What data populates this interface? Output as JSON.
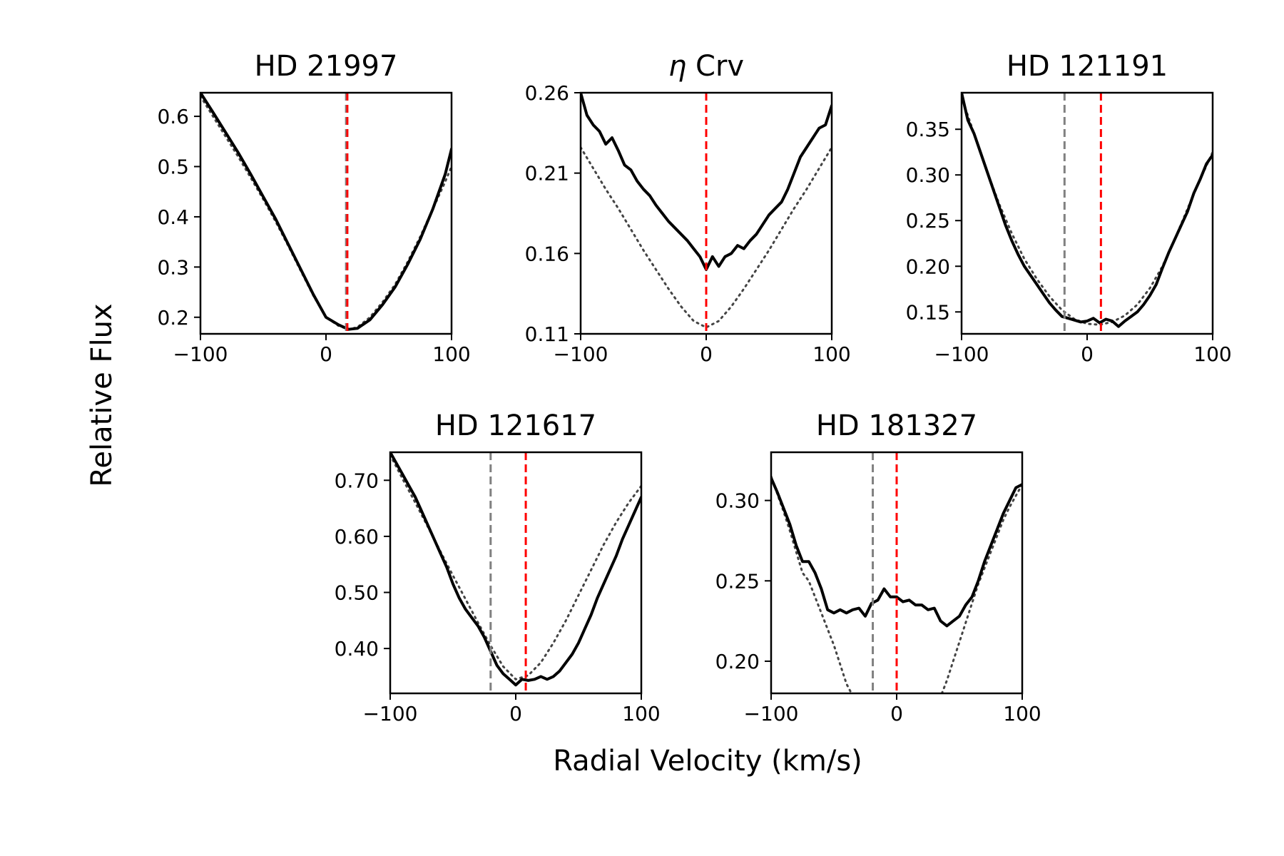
{
  "figure": {
    "xlabel": "Radial Velocity (km/s)",
    "ylabel": "Relative Flux"
  },
  "colors": {
    "observed": "#000000",
    "model": "#444444",
    "systemic_velocity": "#808080",
    "planet_velocity": "#ff0000"
  },
  "chart_data": [
    {
      "type": "line",
      "title": "HD 21997",
      "xlabel": "Radial Velocity (km/s)",
      "ylabel": "Relative Flux",
      "xlim": [
        -100,
        100
      ],
      "ylim": [
        0.167,
        0.647
      ],
      "xticks": [
        -100,
        0,
        100
      ],
      "xtick_labels": [
        "−100",
        "0",
        "100"
      ],
      "yticks": [
        0.2,
        0.3,
        0.4,
        0.5,
        0.6
      ],
      "ytick_labels": [
        "0.2",
        "0.3",
        "0.4",
        "0.5",
        "0.6"
      ],
      "vlines": [
        {
          "x": 16,
          "color": "#808080",
          "label": "systemic"
        },
        {
          "x": 17,
          "color": "#ff0000",
          "label": "planet"
        }
      ],
      "series": [
        {
          "name": "observed",
          "style": "solid",
          "x": [
            -100,
            -90,
            -80,
            -70,
            -60,
            -50,
            -40,
            -30,
            -20,
            -10,
            0,
            10,
            18,
            25,
            35,
            45,
            55,
            65,
            75,
            85,
            95,
            100
          ],
          "y": [
            0.647,
            0.608,
            0.568,
            0.528,
            0.485,
            0.44,
            0.395,
            0.345,
            0.295,
            0.245,
            0.2,
            0.185,
            0.176,
            0.178,
            0.195,
            0.225,
            0.26,
            0.305,
            0.355,
            0.415,
            0.485,
            0.535
          ]
        },
        {
          "name": "model",
          "style": "dotted",
          "x": [
            -100,
            -90,
            -80,
            -70,
            -60,
            -50,
            -40,
            -30,
            -20,
            -10,
            0,
            10,
            18,
            25,
            35,
            45,
            55,
            65,
            75,
            85,
            95,
            100
          ],
          "y": [
            0.64,
            0.6,
            0.56,
            0.52,
            0.478,
            0.435,
            0.39,
            0.342,
            0.292,
            0.243,
            0.2,
            0.183,
            0.176,
            0.18,
            0.2,
            0.23,
            0.265,
            0.31,
            0.36,
            0.415,
            0.47,
            0.5
          ]
        }
      ]
    },
    {
      "type": "line",
      "title": "η Crv",
      "title_italic_part": "η",
      "title_rest": " Crv",
      "xlabel": "Radial Velocity (km/s)",
      "ylabel": "Relative Flux",
      "xlim": [
        -100,
        100
      ],
      "ylim": [
        0.11,
        0.26
      ],
      "xticks": [
        -100,
        0,
        100
      ],
      "xtick_labels": [
        "−100",
        "0",
        "100"
      ],
      "yticks": [
        0.11,
        0.16,
        0.21,
        0.26
      ],
      "ytick_labels": [
        "0.11",
        "0.16",
        "0.21",
        "0.26"
      ],
      "vlines": [
        {
          "x": 0,
          "color": "#808080",
          "label": "systemic"
        },
        {
          "x": 0,
          "color": "#ff0000",
          "label": "planet"
        }
      ],
      "series": [
        {
          "name": "observed",
          "style": "solid",
          "x": [
            -100,
            -95,
            -90,
            -85,
            -80,
            -75,
            -70,
            -65,
            -60,
            -55,
            -50,
            -45,
            -40,
            -35,
            -30,
            -25,
            -20,
            -15,
            -10,
            -5,
            0,
            5,
            10,
            15,
            20,
            25,
            30,
            35,
            40,
            45,
            50,
            55,
            60,
            65,
            70,
            75,
            80,
            85,
            90,
            95,
            100
          ],
          "y": [
            0.26,
            0.246,
            0.24,
            0.236,
            0.228,
            0.232,
            0.224,
            0.215,
            0.212,
            0.205,
            0.2,
            0.196,
            0.19,
            0.185,
            0.18,
            0.176,
            0.172,
            0.168,
            0.163,
            0.158,
            0.15,
            0.158,
            0.152,
            0.158,
            0.16,
            0.165,
            0.163,
            0.168,
            0.172,
            0.178,
            0.184,
            0.188,
            0.192,
            0.2,
            0.21,
            0.22,
            0.226,
            0.232,
            0.238,
            0.24,
            0.252
          ]
        },
        {
          "name": "model",
          "style": "dotted",
          "x": [
            -100,
            -90,
            -80,
            -70,
            -60,
            -50,
            -40,
            -30,
            -20,
            -10,
            0,
            10,
            20,
            30,
            40,
            50,
            60,
            70,
            80,
            90,
            100
          ],
          "y": [
            0.226,
            0.213,
            0.2,
            0.188,
            0.175,
            0.162,
            0.15,
            0.138,
            0.127,
            0.118,
            0.114,
            0.118,
            0.127,
            0.138,
            0.15,
            0.162,
            0.175,
            0.188,
            0.2,
            0.213,
            0.226
          ]
        }
      ]
    },
    {
      "type": "line",
      "title": "HD 121191",
      "xlabel": "Radial Velocity (km/s)",
      "ylabel": "Relative Flux",
      "xlim": [
        -100,
        100
      ],
      "ylim": [
        0.126,
        0.39
      ],
      "xticks": [
        -100,
        0,
        100
      ],
      "xtick_labels": [
        "−100",
        "0",
        "100"
      ],
      "yticks": [
        0.15,
        0.2,
        0.25,
        0.3,
        0.35
      ],
      "ytick_labels": [
        "0.15",
        "0.20",
        "0.25",
        "0.30",
        "0.35"
      ],
      "vlines": [
        {
          "x": -18,
          "color": "#808080",
          "label": "systemic"
        },
        {
          "x": 11,
          "color": "#ff0000",
          "label": "planet"
        }
      ],
      "series": [
        {
          "name": "observed",
          "style": "solid",
          "x": [
            -100,
            -95,
            -90,
            -85,
            -80,
            -75,
            -70,
            -65,
            -60,
            -55,
            -50,
            -45,
            -40,
            -35,
            -30,
            -25,
            -20,
            -15,
            -10,
            -5,
            0,
            5,
            10,
            15,
            20,
            25,
            30,
            35,
            40,
            45,
            50,
            55,
            60,
            65,
            70,
            75,
            80,
            85,
            90,
            95,
            100
          ],
          "y": [
            0.39,
            0.36,
            0.345,
            0.325,
            0.305,
            0.285,
            0.265,
            0.245,
            0.228,
            0.213,
            0.2,
            0.19,
            0.18,
            0.17,
            0.16,
            0.152,
            0.145,
            0.143,
            0.141,
            0.139,
            0.14,
            0.143,
            0.138,
            0.142,
            0.14,
            0.134,
            0.14,
            0.145,
            0.15,
            0.158,
            0.168,
            0.18,
            0.198,
            0.215,
            0.23,
            0.245,
            0.26,
            0.28,
            0.295,
            0.312,
            0.322
          ]
        },
        {
          "name": "model",
          "style": "dotted",
          "x": [
            -100,
            -90,
            -80,
            -70,
            -60,
            -50,
            -40,
            -30,
            -20,
            -10,
            0,
            10,
            20,
            30,
            40,
            50,
            60,
            70,
            80,
            90,
            100
          ],
          "y": [
            0.385,
            0.345,
            0.305,
            0.268,
            0.236,
            0.208,
            0.186,
            0.167,
            0.152,
            0.142,
            0.137,
            0.136,
            0.139,
            0.146,
            0.158,
            0.176,
            0.2,
            0.23,
            0.263,
            0.295,
            0.325
          ]
        }
      ]
    },
    {
      "type": "line",
      "title": "HD 121617",
      "xlabel": "Radial Velocity (km/s)",
      "ylabel": "Relative Flux",
      "xlim": [
        -100,
        100
      ],
      "ylim": [
        0.32,
        0.75
      ],
      "xticks": [
        -100,
        0,
        100
      ],
      "xtick_labels": [
        "−100",
        "0",
        "100"
      ],
      "yticks": [
        0.4,
        0.5,
        0.6,
        0.7
      ],
      "ytick_labels": [
        "0.40",
        "0.50",
        "0.60",
        "0.70"
      ],
      "vlines": [
        {
          "x": -20,
          "color": "#808080",
          "label": "systemic"
        },
        {
          "x": 8,
          "color": "#ff0000",
          "label": "planet"
        }
      ],
      "series": [
        {
          "name": "observed",
          "style": "solid",
          "x": [
            -100,
            -95,
            -90,
            -85,
            -80,
            -75,
            -70,
            -65,
            -60,
            -55,
            -50,
            -45,
            -40,
            -35,
            -30,
            -25,
            -20,
            -15,
            -10,
            -5,
            0,
            5,
            10,
            15,
            20,
            25,
            30,
            35,
            40,
            45,
            50,
            55,
            60,
            65,
            70,
            75,
            80,
            85,
            90,
            95,
            100
          ],
          "y": [
            0.75,
            0.73,
            0.71,
            0.69,
            0.67,
            0.645,
            0.62,
            0.595,
            0.57,
            0.545,
            0.515,
            0.49,
            0.47,
            0.455,
            0.44,
            0.42,
            0.395,
            0.37,
            0.355,
            0.345,
            0.335,
            0.345,
            0.343,
            0.345,
            0.35,
            0.345,
            0.35,
            0.36,
            0.375,
            0.39,
            0.41,
            0.435,
            0.46,
            0.49,
            0.515,
            0.54,
            0.565,
            0.595,
            0.62,
            0.645,
            0.67
          ]
        },
        {
          "name": "model",
          "style": "dotted",
          "x": [
            -100,
            -90,
            -80,
            -70,
            -60,
            -50,
            -40,
            -30,
            -20,
            -10,
            0,
            10,
            20,
            30,
            40,
            50,
            60,
            70,
            80,
            90,
            100
          ],
          "y": [
            0.745,
            0.702,
            0.66,
            0.617,
            0.573,
            0.53,
            0.488,
            0.446,
            0.405,
            0.368,
            0.345,
            0.352,
            0.375,
            0.41,
            0.45,
            0.495,
            0.54,
            0.585,
            0.625,
            0.66,
            0.69
          ]
        }
      ]
    },
    {
      "type": "line",
      "title": "HD 181327",
      "xlabel": "Radial Velocity (km/s)",
      "ylabel": "Relative Flux",
      "xlim": [
        -100,
        100
      ],
      "ylim": [
        0.18,
        0.33
      ],
      "xticks": [
        -100,
        0,
        100
      ],
      "xtick_labels": [
        "−100",
        "0",
        "100"
      ],
      "yticks": [
        0.2,
        0.25,
        0.3
      ],
      "ytick_labels": [
        "0.20",
        "0.25",
        "0.30"
      ],
      "vlines": [
        {
          "x": -19,
          "color": "#808080",
          "label": "systemic"
        },
        {
          "x": 0,
          "color": "#ff0000",
          "label": "planet"
        }
      ],
      "series": [
        {
          "name": "observed",
          "style": "solid",
          "x": [
            -100,
            -95,
            -90,
            -85,
            -80,
            -75,
            -70,
            -65,
            -60,
            -55,
            -50,
            -45,
            -40,
            -35,
            -30,
            -25,
            -20,
            -15,
            -10,
            -5,
            0,
            5,
            10,
            15,
            20,
            25,
            30,
            35,
            40,
            45,
            50,
            55,
            60,
            65,
            70,
            75,
            80,
            85,
            90,
            95,
            100
          ],
          "y": [
            0.314,
            0.305,
            0.295,
            0.285,
            0.272,
            0.262,
            0.262,
            0.255,
            0.245,
            0.232,
            0.23,
            0.232,
            0.23,
            0.232,
            0.233,
            0.228,
            0.236,
            0.238,
            0.245,
            0.24,
            0.24,
            0.237,
            0.238,
            0.235,
            0.235,
            0.232,
            0.233,
            0.225,
            0.222,
            0.225,
            0.228,
            0.235,
            0.24,
            0.25,
            0.262,
            0.272,
            0.282,
            0.292,
            0.3,
            0.308,
            0.31
          ]
        },
        {
          "name": "model",
          "style": "dotted",
          "x": [
            -100,
            -95,
            -90,
            -85,
            -80,
            -75,
            -70,
            -65,
            -60,
            -55,
            -50,
            -45,
            -40,
            -36
          ],
          "y": [
            0.315,
            0.304,
            0.293,
            0.281,
            0.268,
            0.255,
            0.25,
            0.24,
            0.23,
            0.22,
            0.21,
            0.198,
            0.186,
            0.18
          ]
        },
        {
          "name": "model",
          "style": "dotted",
          "x": [
            36,
            40,
            45,
            50,
            55,
            60,
            65,
            70,
            75,
            80,
            85,
            90,
            95,
            100
          ],
          "y": [
            0.18,
            0.188,
            0.2,
            0.212,
            0.224,
            0.236,
            0.248,
            0.258,
            0.268,
            0.278,
            0.288,
            0.296,
            0.303,
            0.31
          ]
        }
      ]
    }
  ]
}
